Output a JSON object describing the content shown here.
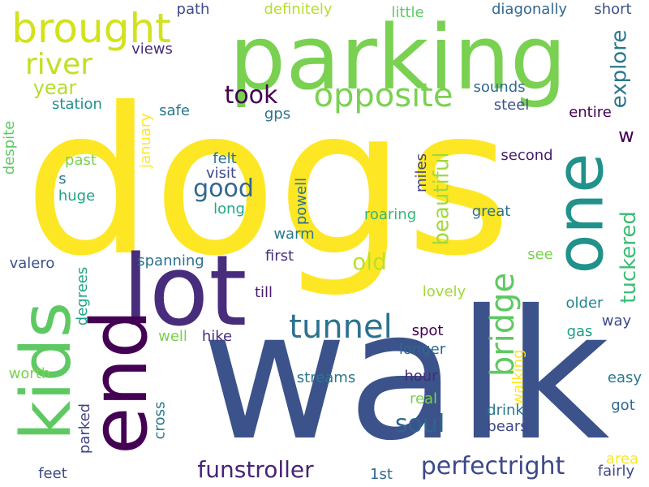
{
  "words": [
    {
      "text": "dogs",
      "color": "#fde725",
      "orientation": "horizontal"
    },
    {
      "text": "walk",
      "color": "#3b528b",
      "orientation": "horizontal"
    },
    {
      "text": "parking",
      "color": "#7ad151",
      "orientation": "horizontal"
    },
    {
      "text": "lot",
      "color": "#472d7b",
      "orientation": "horizontal"
    },
    {
      "text": "end",
      "color": "#440154",
      "orientation": "vertical"
    },
    {
      "text": "kids",
      "color": "#5ec962",
      "orientation": "vertical"
    },
    {
      "text": "one",
      "color": "#21918c",
      "orientation": "vertical"
    },
    {
      "text": "brought",
      "color": "#d2e21b",
      "orientation": "horizontal"
    },
    {
      "text": "river",
      "color": "#c2df23",
      "orientation": "horizontal"
    },
    {
      "text": "opposite",
      "color": "#7ad151",
      "orientation": "horizontal"
    },
    {
      "text": "tunnel",
      "color": "#2c728e",
      "orientation": "horizontal"
    },
    {
      "text": "bridge",
      "color": "#5ec962",
      "orientation": "vertical"
    },
    {
      "text": "year",
      "color": "#b5de2b",
      "orientation": "horizontal"
    },
    {
      "text": "took",
      "color": "#440154",
      "orientation": "horizontal"
    },
    {
      "text": "good",
      "color": "#31688e",
      "orientation": "horizontal"
    },
    {
      "text": "explore",
      "color": "#2a788e",
      "orientation": "vertical"
    },
    {
      "text": "tuckered",
      "color": "#3dbc74",
      "orientation": "vertical"
    },
    {
      "text": "beautiful",
      "color": "#a0da39",
      "orientation": "vertical"
    },
    {
      "text": "old",
      "color": "#bddf26",
      "orientation": "horizontal"
    },
    {
      "text": "soul",
      "color": "#33638d",
      "orientation": "horizontal"
    },
    {
      "text": "funstroller",
      "color": "#482475",
      "orientation": "horizontal"
    },
    {
      "text": "perfectright",
      "color": "#3e4989",
      "orientation": "horizontal"
    },
    {
      "text": "w",
      "color": "#440154",
      "orientation": "horizontal"
    },
    {
      "text": "path",
      "color": "#3e4989",
      "orientation": "horizontal"
    },
    {
      "text": "definitely",
      "color": "#b5de2b",
      "orientation": "horizontal"
    },
    {
      "text": "little",
      "color": "#5ec962",
      "orientation": "horizontal"
    },
    {
      "text": "diagonally",
      "color": "#31688e",
      "orientation": "horizontal"
    },
    {
      "text": "short",
      "color": "#3b528b",
      "orientation": "horizontal"
    },
    {
      "text": "views",
      "color": "#472d7b",
      "orientation": "horizontal"
    },
    {
      "text": "station",
      "color": "#21918c",
      "orientation": "horizontal"
    },
    {
      "text": "safe",
      "color": "#2a788e",
      "orientation": "horizontal"
    },
    {
      "text": "gps",
      "color": "#2c728e",
      "orientation": "horizontal"
    },
    {
      "text": "sounds",
      "color": "#31688e",
      "orientation": "horizontal"
    },
    {
      "text": "steel",
      "color": "#3b528b",
      "orientation": "horizontal"
    },
    {
      "text": "entire",
      "color": "#440154",
      "orientation": "horizontal"
    },
    {
      "text": "january",
      "color": "#fde725",
      "orientation": "vertical"
    },
    {
      "text": "despite",
      "color": "#5ec962",
      "orientation": "vertical"
    },
    {
      "text": "past",
      "color": "#7ad151",
      "orientation": "horizontal"
    },
    {
      "text": "s",
      "color": "#2a788e",
      "orientation": "horizontal"
    },
    {
      "text": "huge",
      "color": "#20a486",
      "orientation": "horizontal"
    },
    {
      "text": "felt",
      "color": "#2c728e",
      "orientation": "horizontal"
    },
    {
      "text": "visit",
      "color": "#3e4989",
      "orientation": "horizontal"
    },
    {
      "text": "long",
      "color": "#22a884",
      "orientation": "horizontal"
    },
    {
      "text": "miles",
      "color": "#414487",
      "orientation": "vertical"
    },
    {
      "text": "powell",
      "color": "#2c728e",
      "orientation": "vertical"
    },
    {
      "text": "second",
      "color": "#481a6c",
      "orientation": "horizontal"
    },
    {
      "text": "roaring",
      "color": "#35b779",
      "orientation": "horizontal"
    },
    {
      "text": "great",
      "color": "#2c728e",
      "orientation": "horizontal"
    },
    {
      "text": "valero",
      "color": "#3b528b",
      "orientation": "horizontal"
    },
    {
      "text": "spanning",
      "color": "#2c728e",
      "orientation": "horizontal"
    },
    {
      "text": "warm",
      "color": "#2a788e",
      "orientation": "horizontal"
    },
    {
      "text": "first",
      "color": "#472d7b",
      "orientation": "horizontal"
    },
    {
      "text": "see",
      "color": "#7ad151",
      "orientation": "horizontal"
    },
    {
      "text": "degrees",
      "color": "#20a486",
      "orientation": "vertical"
    },
    {
      "text": "till",
      "color": "#481a6c",
      "orientation": "horizontal"
    },
    {
      "text": "lovely",
      "color": "#a0da39",
      "orientation": "horizontal"
    },
    {
      "text": "older",
      "color": "#25858e",
      "orientation": "horizontal"
    },
    {
      "text": "way",
      "color": "#3e4989",
      "orientation": "horizontal"
    },
    {
      "text": "well",
      "color": "#7ad151",
      "orientation": "horizontal"
    },
    {
      "text": "hike",
      "color": "#472d7b",
      "orientation": "horizontal"
    },
    {
      "text": "spot",
      "color": "#440154",
      "orientation": "horizontal"
    },
    {
      "text": "gas",
      "color": "#1f9e89",
      "orientation": "horizontal"
    },
    {
      "text": "longer",
      "color": "#31688e",
      "orientation": "horizontal"
    },
    {
      "text": "walking",
      "color": "#fde725",
      "orientation": "vertical"
    },
    {
      "text": "worth",
      "color": "#7ad151",
      "orientation": "horizontal"
    },
    {
      "text": "streams",
      "color": "#2a788e",
      "orientation": "horizontal"
    },
    {
      "text": "hour",
      "color": "#482878",
      "orientation": "horizontal"
    },
    {
      "text": "easy",
      "color": "#2a788e",
      "orientation": "horizontal"
    },
    {
      "text": "cross",
      "color": "#2a788e",
      "orientation": "vertical"
    },
    {
      "text": "parked",
      "color": "#414487",
      "orientation": "vertical"
    },
    {
      "text": "real",
      "color": "#7ad151",
      "orientation": "horizontal"
    },
    {
      "text": "drink",
      "color": "#2a788e",
      "orientation": "horizontal"
    },
    {
      "text": "got",
      "color": "#31688e",
      "orientation": "horizontal"
    },
    {
      "text": "bears",
      "color": "#3e4989",
      "orientation": "horizontal"
    },
    {
      "text": "area",
      "color": "#fde725",
      "orientation": "horizontal"
    },
    {
      "text": "feet",
      "color": "#3e4989",
      "orientation": "horizontal"
    },
    {
      "text": "1st",
      "color": "#31688e",
      "orientation": "horizontal"
    },
    {
      "text": "fairly",
      "color": "#3e4989",
      "orientation": "horizontal"
    }
  ]
}
